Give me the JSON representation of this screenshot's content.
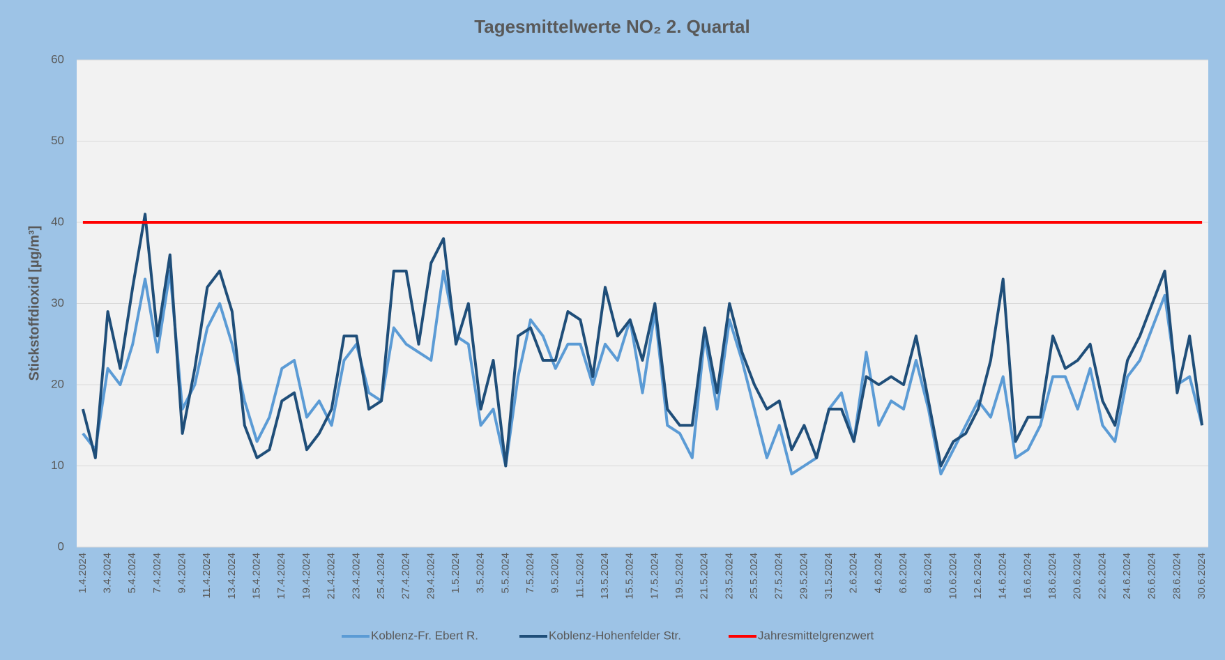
{
  "chart_data": {
    "type": "line",
    "title": "Tagesmittelwerte NO₂ 2. Quartal",
    "y_label": "Stickstoffdioxid [µg/m³]",
    "categories": [
      "1.4.2024",
      null,
      "3.4.2024",
      null,
      "5.4.2024",
      null,
      "7.4.2024",
      null,
      "9.4.2024",
      null,
      "11.4.2024",
      null,
      "13.4.2024",
      null,
      "15.4.2024",
      null,
      "17.4.2024",
      null,
      "19.4.2024",
      null,
      "21.4.2024",
      null,
      "23.4.2024",
      null,
      "25.4.2024",
      null,
      "27.4.2024",
      null,
      "29.4.2024",
      null,
      "1.5.2024",
      null,
      "3.5.2024",
      null,
      "5.5.2024",
      null,
      "7.5.2024",
      null,
      "9.5.2024",
      null,
      "11.5.2024",
      null,
      "13.5.2024",
      null,
      "15.5.2024",
      null,
      "17.5.2024",
      null,
      "19.5.2024",
      null,
      "21.5.2024",
      null,
      "23.5.2024",
      null,
      "25.5.2024",
      null,
      "27.5.2024",
      null,
      "29.5.2024",
      null,
      "31.5.2024",
      null,
      "2.6.2024",
      null,
      "4.6.2024",
      null,
      "6.6.2024",
      null,
      "8.6.2024",
      null,
      "10.6.2024",
      null,
      "12.6.2024",
      null,
      "14.6.2024",
      null,
      "16.6.2024",
      null,
      "18.6.2024",
      null,
      "20.6.2024",
      null,
      "22.6.2024",
      null,
      "24.6.2024",
      null,
      "26.6.2024",
      null,
      "28.6.2024",
      null,
      "30.6.2024"
    ],
    "series": [
      {
        "name": "Koblenz-Fr. Ebert R.",
        "color": "#5b9bd5",
        "values": [
          14,
          12,
          22,
          20,
          25,
          33,
          24,
          34,
          17,
          20,
          27,
          30,
          25,
          18,
          13,
          16,
          22,
          23,
          16,
          18,
          15,
          23,
          25,
          19,
          18,
          27,
          25,
          24,
          23,
          34,
          26,
          25,
          15,
          17,
          10,
          21,
          28,
          26,
          22,
          25,
          25,
          20,
          25,
          23,
          28,
          19,
          29,
          15,
          14,
          11,
          26,
          17,
          28,
          23,
          17,
          11,
          15,
          9,
          10,
          11,
          17,
          19,
          13,
          24,
          15,
          18,
          17,
          23,
          17,
          9,
          12,
          15,
          18,
          16,
          21,
          11,
          12,
          15,
          21,
          21,
          17,
          22,
          15,
          13,
          21,
          23,
          27,
          31,
          20,
          21,
          15
        ]
      },
      {
        "name": "Koblenz-Hohenfelder Str.",
        "color": "#1f4e79",
        "values": [
          17,
          11,
          29,
          22,
          32,
          41,
          26,
          36,
          14,
          22,
          32,
          34,
          29,
          15,
          11,
          12,
          18,
          19,
          12,
          14,
          17,
          26,
          26,
          17,
          18,
          34,
          34,
          25,
          35,
          38,
          25,
          30,
          17,
          23,
          10,
          26,
          27,
          23,
          23,
          29,
          28,
          21,
          32,
          26,
          28,
          23,
          30,
          17,
          15,
          15,
          27,
          19,
          30,
          24,
          20,
          17,
          18,
          12,
          15,
          11,
          17,
          17,
          13,
          21,
          20,
          21,
          20,
          26,
          18,
          10,
          13,
          14,
          17,
          23,
          33,
          13,
          16,
          16,
          26,
          22,
          23,
          25,
          18,
          15,
          23,
          26,
          30,
          34,
          19,
          26,
          15
        ]
      },
      {
        "name": "Jahresmittelgrenzwert",
        "color": "#ff0000",
        "values": [
          40,
          40,
          40,
          40,
          40,
          40,
          40,
          40,
          40,
          40,
          40,
          40,
          40,
          40,
          40,
          40,
          40,
          40,
          40,
          40,
          40,
          40,
          40,
          40,
          40,
          40,
          40,
          40,
          40,
          40,
          40,
          40,
          40,
          40,
          40,
          40,
          40,
          40,
          40,
          40,
          40,
          40,
          40,
          40,
          40,
          40,
          40,
          40,
          40,
          40,
          40,
          40,
          40,
          40,
          40,
          40,
          40,
          40,
          40,
          40,
          40,
          40,
          40,
          40,
          40,
          40,
          40,
          40,
          40,
          40,
          40,
          40,
          40,
          40,
          40,
          40,
          40,
          40,
          40,
          40,
          40,
          40,
          40,
          40,
          40,
          40,
          40,
          40,
          40,
          40,
          40
        ]
      }
    ],
    "ylim": [
      0,
      60
    ],
    "yticks": [
      0,
      10,
      20,
      30,
      40,
      50,
      60
    ],
    "grid": true,
    "legend": "bottom"
  }
}
